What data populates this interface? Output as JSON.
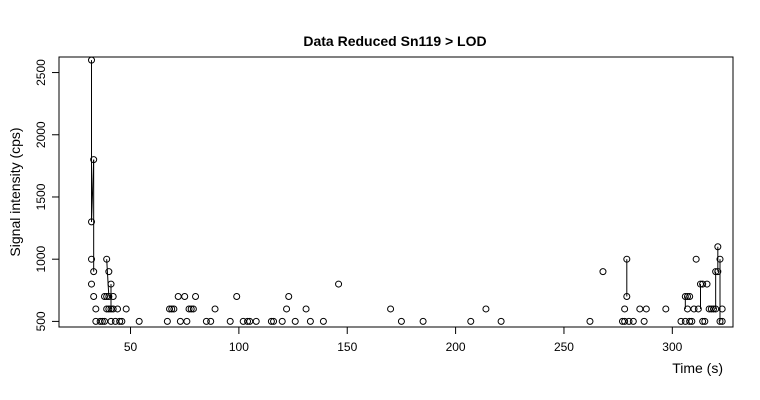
{
  "chart_data": {
    "type": "scatter",
    "title": "Data Reduced Sn119 > LOD",
    "xlabel": "Time (s)",
    "ylabel": "Signal intensity (cps)",
    "xlim": [
      17,
      328
    ],
    "ylim": [
      455,
      2625
    ],
    "xticks": [
      50,
      100,
      150,
      200,
      250,
      300
    ],
    "yticks": [
      500,
      1000,
      1500,
      2000,
      2500
    ],
    "grid": false,
    "points": [
      [
        32,
        2600
      ],
      [
        32,
        1300
      ],
      [
        32,
        1000
      ],
      [
        32,
        800
      ],
      [
        33,
        1800
      ],
      [
        33,
        900
      ],
      [
        33,
        700
      ],
      [
        34,
        600
      ],
      [
        34,
        500
      ],
      [
        36,
        500
      ],
      [
        37,
        500
      ],
      [
        38,
        700
      ],
      [
        38,
        500
      ],
      [
        39,
        1000
      ],
      [
        39,
        700
      ],
      [
        39,
        600
      ],
      [
        40,
        900
      ],
      [
        40,
        700
      ],
      [
        40,
        600
      ],
      [
        41,
        800
      ],
      [
        41,
        600
      ],
      [
        41,
        500
      ],
      [
        42,
        700
      ],
      [
        42,
        600
      ],
      [
        43,
        500
      ],
      [
        44,
        600
      ],
      [
        45,
        500
      ],
      [
        46,
        500
      ],
      [
        48,
        600
      ],
      [
        54,
        500
      ],
      [
        67,
        500
      ],
      [
        68,
        600
      ],
      [
        69,
        600
      ],
      [
        70,
        600
      ],
      [
        72,
        700
      ],
      [
        73,
        500
      ],
      [
        75,
        700
      ],
      [
        76,
        500
      ],
      [
        77,
        600
      ],
      [
        78,
        600
      ],
      [
        79,
        600
      ],
      [
        80,
        700
      ],
      [
        85,
        500
      ],
      [
        87,
        500
      ],
      [
        89,
        600
      ],
      [
        96,
        500
      ],
      [
        99,
        700
      ],
      [
        102,
        500
      ],
      [
        104,
        500
      ],
      [
        105,
        500
      ],
      [
        108,
        500
      ],
      [
        115,
        500
      ],
      [
        116,
        500
      ],
      [
        120,
        500
      ],
      [
        122,
        600
      ],
      [
        123,
        700
      ],
      [
        126,
        500
      ],
      [
        131,
        600
      ],
      [
        133,
        500
      ],
      [
        139,
        500
      ],
      [
        146,
        800
      ],
      [
        170,
        600
      ],
      [
        175,
        500
      ],
      [
        185,
        500
      ],
      [
        207,
        500
      ],
      [
        214,
        600
      ],
      [
        221,
        500
      ],
      [
        262,
        500
      ],
      [
        268,
        900
      ],
      [
        277,
        500
      ],
      [
        278,
        600
      ],
      [
        278,
        500
      ],
      [
        279,
        1000
      ],
      [
        279,
        700
      ],
      [
        280,
        500
      ],
      [
        282,
        500
      ],
      [
        285,
        600
      ],
      [
        287,
        500
      ],
      [
        288,
        600
      ],
      [
        297,
        600
      ],
      [
        304,
        500
      ],
      [
        306,
        700
      ],
      [
        306,
        500
      ],
      [
        307,
        700
      ],
      [
        307,
        600
      ],
      [
        308,
        500
      ],
      [
        308,
        700
      ],
      [
        309,
        500
      ],
      [
        310,
        600
      ],
      [
        311,
        1000
      ],
      [
        312,
        600
      ],
      [
        313,
        800
      ],
      [
        314,
        500
      ],
      [
        314,
        800
      ],
      [
        315,
        500
      ],
      [
        316,
        800
      ],
      [
        317,
        600
      ],
      [
        318,
        600
      ],
      [
        319,
        600
      ],
      [
        320,
        600
      ],
      [
        320,
        900
      ],
      [
        321,
        1100
      ],
      [
        321,
        900
      ],
      [
        322,
        1000
      ],
      [
        322,
        500
      ],
      [
        323,
        500
      ],
      [
        323,
        600
      ]
    ],
    "segments": [
      [
        32,
        2600,
        32,
        1300
      ],
      [
        32,
        1300,
        33,
        1800
      ],
      [
        33,
        1800,
        33,
        900
      ],
      [
        39,
        1000,
        40,
        700
      ],
      [
        41,
        800,
        41,
        600
      ],
      [
        279,
        1000,
        279,
        700
      ],
      [
        306,
        700,
        306,
        600
      ],
      [
        313,
        800,
        313,
        600
      ],
      [
        320,
        900,
        320,
        600
      ],
      [
        321,
        1100,
        321,
        900
      ],
      [
        322,
        1000,
        322,
        500
      ]
    ]
  }
}
